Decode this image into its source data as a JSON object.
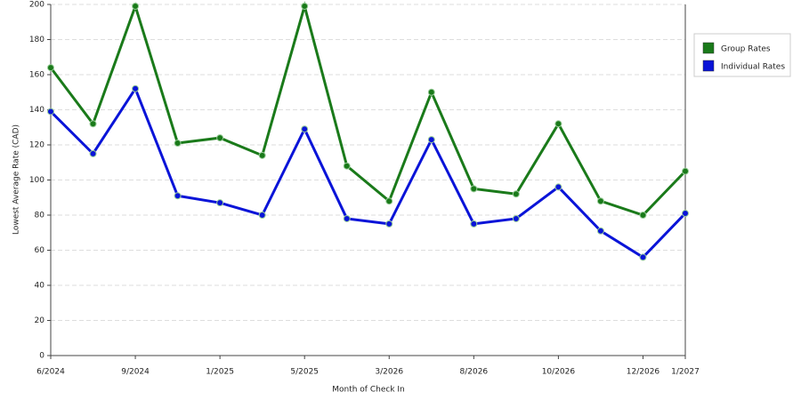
{
  "chart_data": {
    "type": "line",
    "x_label": "Month of Check In",
    "y_label": "Lowest Average Rate (CAD)",
    "categories": [
      "6/2024",
      null,
      "9/2024",
      null,
      "1/2025",
      null,
      "5/2025",
      null,
      "3/2026",
      null,
      "8/2026",
      null,
      "10/2026",
      null,
      "12/2026",
      "1/2027"
    ],
    "series": [
      {
        "name": "Group Rates",
        "color": "#1a7a1a",
        "values": [
          164,
          132,
          199,
          121,
          124,
          114,
          199,
          108,
          88,
          150,
          95,
          92,
          132,
          88,
          80,
          105
        ]
      },
      {
        "name": "Individual Rates",
        "color": "#0a14d8",
        "values": [
          139,
          115,
          152,
          91,
          87,
          80,
          129,
          78,
          75,
          123,
          75,
          78,
          96,
          71,
          56,
          81
        ]
      }
    ],
    "ylim": [
      0,
      200
    ],
    "yticks": [
      0,
      20,
      40,
      60,
      80,
      100,
      120,
      140,
      160,
      180,
      200
    ],
    "grid": true,
    "legend": "right"
  }
}
